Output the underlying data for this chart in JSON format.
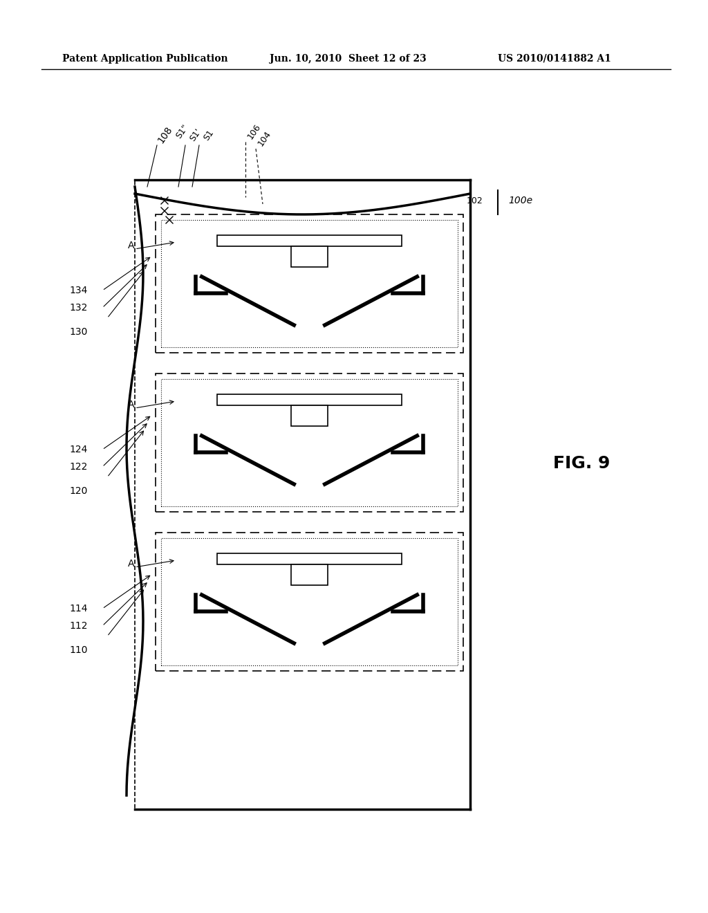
{
  "bg_color": "#ffffff",
  "header_left": "Patent Application Publication",
  "header_mid": "Jun. 10, 2010  Sheet 12 of 23",
  "header_right": "US 2010/0141882 A1",
  "fig_label": "FIG. 9",
  "ref_100e": "100e",
  "ref_102": "102",
  "ref_104": "104",
  "ref_106": "106",
  "ref_108": "108",
  "ref_S1": "S1",
  "ref_S1p": "S1'",
  "ref_S1pp": "S1\"",
  "ref_110": "110",
  "ref_112": "112",
  "ref_114": "114",
  "ref_120": "120",
  "ref_122": "122",
  "ref_124": "124",
  "ref_130": "130",
  "ref_132": "132",
  "ref_134": "134"
}
